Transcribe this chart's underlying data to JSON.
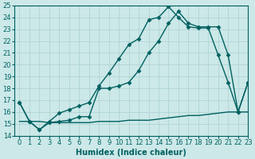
{
  "title": "",
  "xlabel": "Humidex (Indice chaleur)",
  "ylabel": "",
  "bg_color": "#cce8e8",
  "line_color": "#006060",
  "grid_color": "#aad0d0",
  "series1_x": [
    0,
    1,
    2,
    3,
    4,
    5,
    6,
    7,
    8,
    9,
    10,
    11,
    12,
    13,
    14,
    15,
    16,
    17,
    18,
    19,
    20,
    21,
    22,
    23
  ],
  "series1_y": [
    16.8,
    15.2,
    14.5,
    15.2,
    15.9,
    16.2,
    16.5,
    16.8,
    18.2,
    19.3,
    20.5,
    21.7,
    22.2,
    23.8,
    24.0,
    24.9,
    24.0,
    23.2,
    23.1,
    23.1,
    20.8,
    18.5,
    16.0,
    18.5
  ],
  "series2_x": [
    0,
    1,
    2,
    3,
    4,
    5,
    6,
    7,
    8,
    9,
    10,
    11,
    12,
    13,
    14,
    15,
    16,
    17,
    18,
    19,
    20,
    21,
    22,
    23
  ],
  "series2_y": [
    16.8,
    15.2,
    14.5,
    15.1,
    15.2,
    15.3,
    15.6,
    15.6,
    18.0,
    18.0,
    18.2,
    18.5,
    19.5,
    21.0,
    22.0,
    23.5,
    24.5,
    23.5,
    23.2,
    23.2,
    23.2,
    20.8,
    16.0,
    18.5
  ],
  "series3_x": [
    0,
    1,
    2,
    3,
    4,
    5,
    6,
    7,
    8,
    9,
    10,
    11,
    12,
    13,
    14,
    15,
    16,
    17,
    18,
    19,
    20,
    21,
    22,
    23
  ],
  "series3_y": [
    15.2,
    15.2,
    15.2,
    15.1,
    15.1,
    15.1,
    15.1,
    15.1,
    15.2,
    15.2,
    15.2,
    15.3,
    15.3,
    15.3,
    15.4,
    15.5,
    15.6,
    15.7,
    15.7,
    15.8,
    15.9,
    16.0,
    16.0,
    16.0
  ],
  "ylim": [
    14,
    25
  ],
  "xlim": [
    -0.5,
    23
  ],
  "yticks": [
    14,
    15,
    16,
    17,
    18,
    19,
    20,
    21,
    22,
    23,
    24,
    25
  ],
  "xticks": [
    0,
    1,
    2,
    3,
    4,
    5,
    6,
    7,
    8,
    9,
    10,
    11,
    12,
    13,
    14,
    15,
    16,
    17,
    18,
    19,
    20,
    21,
    22,
    23
  ],
  "marker": "D",
  "markersize": 2.5,
  "linewidth": 1.0,
  "xlabel_fontsize": 7,
  "tick_fontsize": 6
}
